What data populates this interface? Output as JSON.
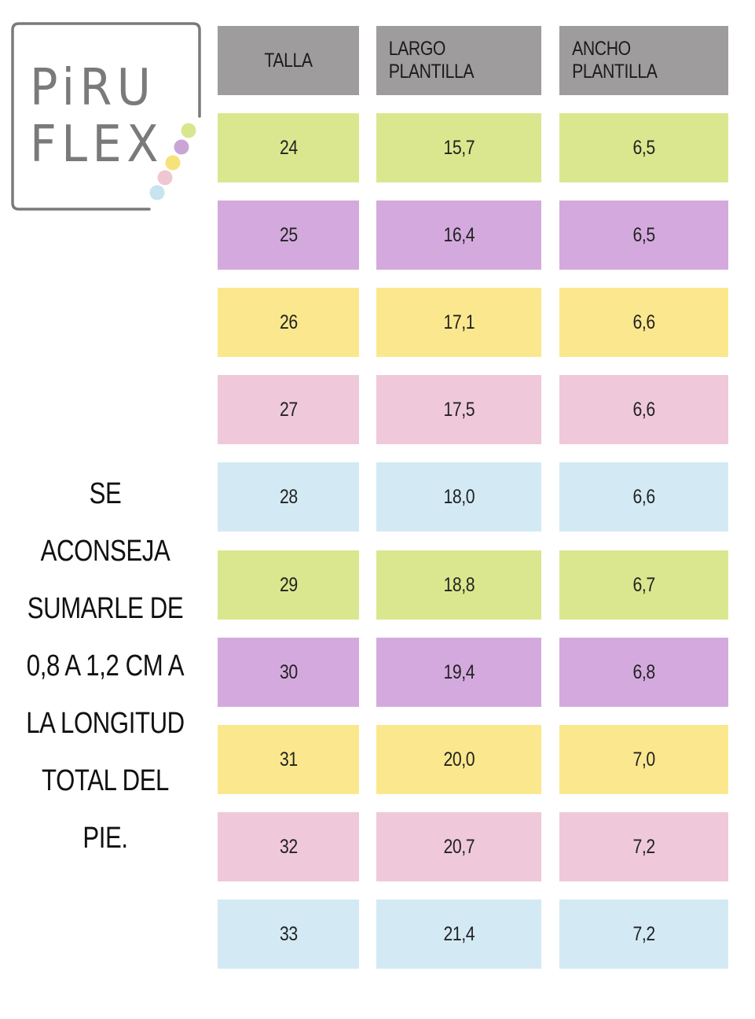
{
  "brand": {
    "line1": "PiRU",
    "line2": "FLEX",
    "frame_color": "#7a7a7a",
    "dot_colors": [
      "#d8e78f",
      "#c9a5d6",
      "#f5e37a",
      "#f1c6d3",
      "#c7e4ef"
    ]
  },
  "note": {
    "lines": [
      "SE ACONSEJA",
      "SUMARLE DE",
      "0,8 A 1,2 CM A",
      "LA LONGITUD",
      "TOTAL DEL PIE."
    ]
  },
  "table": {
    "header_color": "#9e9c9d",
    "headers": [
      "TALLA",
      "LARGO PLANTILLA",
      "ANCHO PLANTILLA"
    ],
    "rows": [
      {
        "talla": "24",
        "largo": "15,7",
        "ancho": "6,5",
        "color": "#dbe78e"
      },
      {
        "talla": "25",
        "largo": "16,4",
        "ancho": "6,5",
        "color": "#d4aade"
      },
      {
        "talla": "26",
        "largo": "17,1",
        "ancho": "6,6",
        "color": "#fbe88e"
      },
      {
        "talla": "27",
        "largo": "17,5",
        "ancho": "6,6",
        "color": "#efc9d9"
      },
      {
        "talla": "28",
        "largo": "18,0",
        "ancho": "6,6",
        "color": "#d3eaf5"
      },
      {
        "talla": "29",
        "largo": "18,8",
        "ancho": "6,7",
        "color": "#dbe78e"
      },
      {
        "talla": "30",
        "largo": "19,4",
        "ancho": "6,8",
        "color": "#d4aade"
      },
      {
        "talla": "31",
        "largo": "20,0",
        "ancho": "7,0",
        "color": "#fbe88e"
      },
      {
        "talla": "32",
        "largo": "20,7",
        "ancho": "7,2",
        "color": "#efc9d9"
      },
      {
        "talla": "33",
        "largo": "21,4",
        "ancho": "7,2",
        "color": "#d3eaf5"
      }
    ]
  }
}
